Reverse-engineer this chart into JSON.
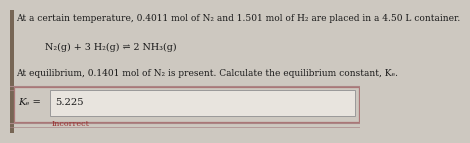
{
  "bg_color": "#cdc8c0",
  "text_color": "#1a1a1a",
  "line1": "At a certain temperature, 0.4011 mol of N₂ and 1.501 mol of H₂ are placed in a 4.50 L container.",
  "line2": "N₂(g) + 3 H₂(g) ⇌ 2 NH₃(g)",
  "line3": "At equilibrium, 0.1401 mol of N₂ is present. Calculate the equilibrium constant, Kₑ.",
  "label": "Kₑ =",
  "answer": "5.225",
  "incorrect_text": "Incorrect",
  "incorrect_color": "#993333",
  "outer_box_color": "#aa7777",
  "inner_box_fill": "#e8e4de",
  "inner_box_edge": "#999999",
  "font_size_body": 6.5,
  "font_size_equation": 6.8,
  "font_size_label": 7.2,
  "font_size_answer": 7.2,
  "font_size_incorrect": 5.8,
  "sep_line_color": "#aa8888",
  "left_bar_color": "#776655"
}
